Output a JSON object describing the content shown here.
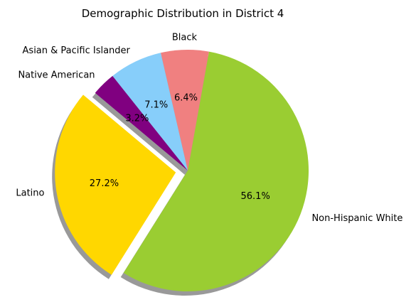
{
  "chart_data": {
    "type": "pie",
    "title": "Demographic Distribution in District 4",
    "start_angle_deg": 140,
    "direction": "counterclockwise",
    "shadow": true,
    "slices": [
      {
        "label": "Latino",
        "value": 27.2,
        "pct_label": "27.2%",
        "color": "#FFD700",
        "explode": 0.1
      },
      {
        "label": "Non-Hispanic White",
        "value": 56.1,
        "pct_label": "56.1%",
        "color": "#9ACD32",
        "explode": 0
      },
      {
        "label": "Black",
        "value": 6.4,
        "pct_label": "6.4%",
        "color": "#F08080",
        "explode": 0
      },
      {
        "label": "Asian & Pacific Islander",
        "value": 7.1,
        "pct_label": "7.1%",
        "color": "#87CEFA",
        "explode": 0
      },
      {
        "label": "Native American",
        "value": 3.2,
        "pct_label": "3.2%",
        "color": "#800080",
        "explode": 0
      }
    ]
  }
}
